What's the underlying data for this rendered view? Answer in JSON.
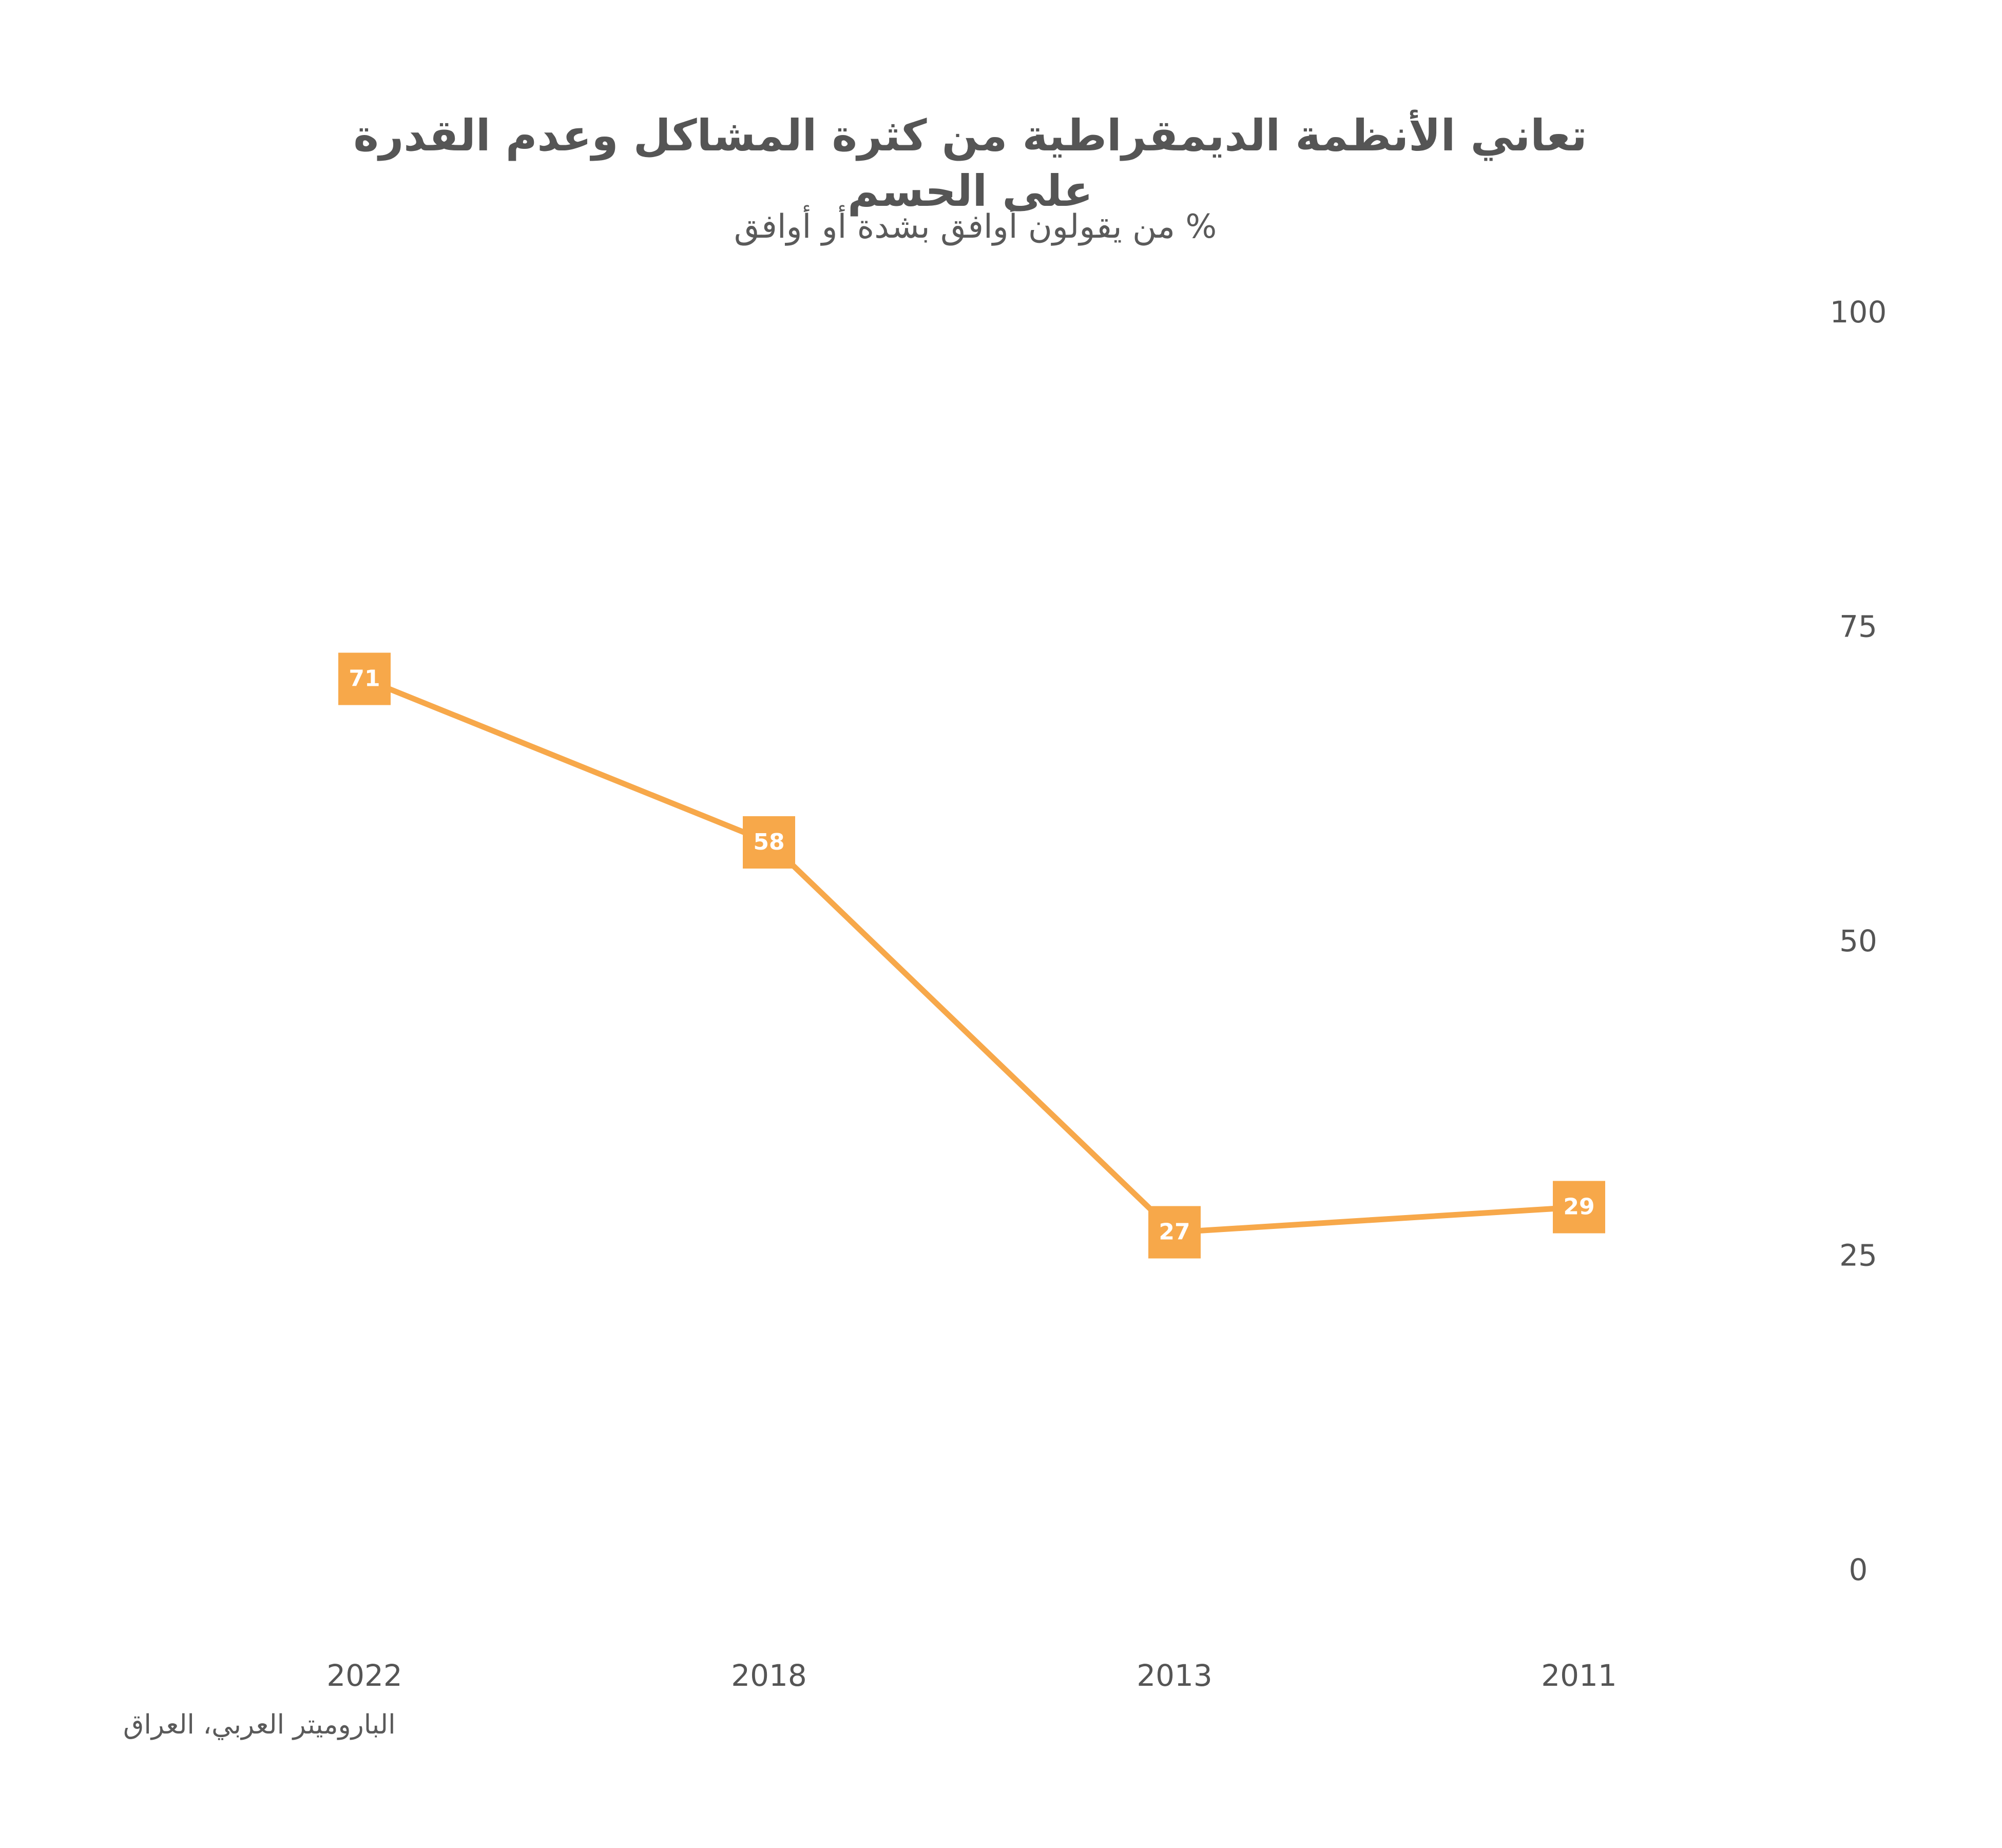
{
  "title": "تعاني الأنظمة الديمقراطية من كثرة المشاكل وعدم القدرة على الحسم",
  "subtitle": "% من يقولون أوافق بشدة أو أوافق",
  "source": "الباروميتر العربي، العراق",
  "colors": {
    "series": "#F7A84A",
    "text": "#555555",
    "label_text": "#FFFFFF"
  },
  "chart_data": {
    "type": "line",
    "categories": [
      "2022",
      "2018",
      "2013",
      "2011"
    ],
    "series": [
      {
        "values": [
          71,
          58,
          27,
          29
        ]
      }
    ],
    "ylim": [
      0,
      100
    ],
    "yticks": [
      0,
      25,
      50,
      75,
      100
    ],
    "y_axis_position": "right",
    "x_axis_direction": "right-to-left chronological",
    "grid": false,
    "legend": "none",
    "data_labels": true
  }
}
